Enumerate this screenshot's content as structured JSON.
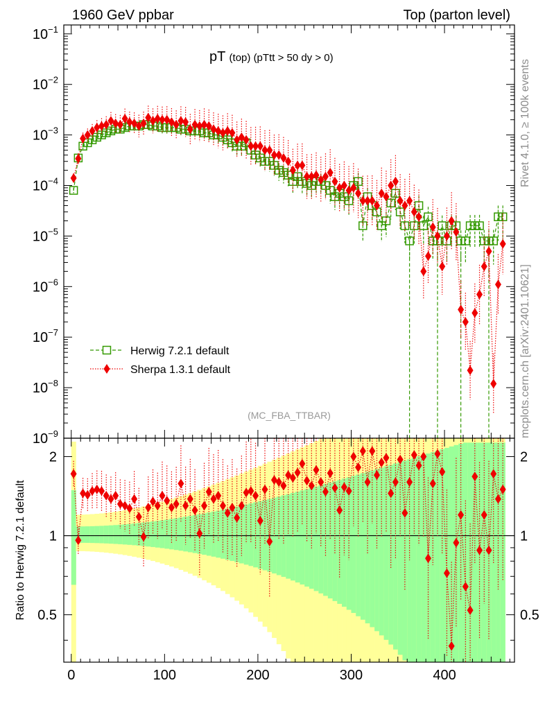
{
  "header": {
    "left": "1960 GeV ppbar",
    "right": "Top (parton level)"
  },
  "side_labels": {
    "rivet": "Rivet 4.1.0, ≥ 100k events",
    "mcplots": "mcplots.cern.ch [arXiv:2401.10621]"
  },
  "chart_data": [
    {
      "type": "scatter",
      "title_main": "pT",
      "title_sub": "(top)",
      "title_cut": "(pTtt > 50 dy > 0)",
      "analysis_tag": "(MC_FBA_TTBAR)",
      "yscale": "log",
      "xlim": [
        -8,
        475
      ],
      "ylim": [
        1e-09,
        0.15
      ],
      "ytick_labels": [
        "10−9",
        "10−8",
        "10−7",
        "10−6",
        "10−5",
        "10−4",
        "10−3",
        "10−2",
        "10−1"
      ],
      "ytick_values": [
        1e-09,
        1e-08,
        1e-07,
        1e-06,
        1e-05,
        0.0001,
        0.001,
        0.01,
        0.1
      ],
      "legend_position": "bottom-left",
      "series": [
        {
          "name": "Herwig 7.2.1 default",
          "color": "#339900",
          "marker": "open-square",
          "line": "dashed",
          "x": [
            2.5,
            7.5,
            12.5,
            17.5,
            22.5,
            27.5,
            32.5,
            37.5,
            42.5,
            47.5,
            52.5,
            57.5,
            62.5,
            67.5,
            72.5,
            77.5,
            82.5,
            87.5,
            92.5,
            97.5,
            102.5,
            107.5,
            112.5,
            117.5,
            122.5,
            127.5,
            132.5,
            137.5,
            142.5,
            147.5,
            152.5,
            157.5,
            162.5,
            167.5,
            172.5,
            177.5,
            182.5,
            187.5,
            192.5,
            197.5,
            202.5,
            207.5,
            212.5,
            217.5,
            222.5,
            227.5,
            232.5,
            237.5,
            242.5,
            247.5,
            252.5,
            257.5,
            262.5,
            267.5,
            272.5,
            277.5,
            282.5,
            287.5,
            292.5,
            297.5,
            302.5,
            307.5,
            312.5,
            317.5,
            322.5,
            327.5,
            332.5,
            337.5,
            342.5,
            347.5,
            352.5,
            357.5,
            362.5,
            367.5,
            372.5,
            377.5,
            382.5,
            387.5,
            392.5,
            397.5,
            402.5,
            407.5,
            412.5,
            417.5,
            422.5,
            427.5,
            432.5,
            437.5,
            442.5,
            447.5,
            452.5,
            457.5,
            462.5
          ],
          "y": [
            8e-05,
            0.00035,
            0.0006,
            0.0007,
            0.0008,
            0.0009,
            0.001,
            0.0011,
            0.0012,
            0.0013,
            0.0013,
            0.0014,
            0.0015,
            0.0015,
            0.0015,
            0.0016,
            0.0016,
            0.0015,
            0.0015,
            0.0014,
            0.0014,
            0.0014,
            0.0014,
            0.0013,
            0.0013,
            0.0012,
            0.0012,
            0.0012,
            0.0011,
            0.0011,
            0.001,
            0.001,
            0.0009,
            0.0008,
            0.0007,
            0.0006,
            0.0006,
            0.0007,
            0.0005,
            0.0004,
            0.00035,
            0.0003,
            0.0003,
            0.00025,
            0.0002,
            0.00018,
            0.00016,
            0.00012,
            0.00015,
            0.00012,
            0.00011,
            0.0001,
            0.00012,
            0.00012,
            0.0001,
            8e-05,
            6e-05,
            7e-05,
            6e-05,
            5e-05,
            0.0001,
            0.00012,
            1.6e-05,
            6e-05,
            4e-05,
            3e-05,
            1.6e-05,
            2e-05,
            4.5e-05,
            7e-05,
            3e-05,
            1.6e-05,
            8e-06,
            1.6e-05,
            4e-05,
            1.6e-05,
            2.4e-05,
            8e-06,
            8e-06,
            1.6e-05,
            8e-06,
            1.6e-05,
            1.6e-05,
            8e-06,
            8e-06,
            1.6e-05,
            1.6e-05,
            1.6e-05,
            8e-06,
            8e-06,
            8e-06,
            2.4e-05,
            2.4e-05
          ]
        },
        {
          "name": "Sherpa 1.3.1 default",
          "color": "#ee0000",
          "marker": "filled-diamond",
          "line": "dotted",
          "x": [
            2.5,
            7.5,
            12.5,
            17.5,
            22.5,
            27.5,
            32.5,
            37.5,
            42.5,
            47.5,
            52.5,
            57.5,
            62.5,
            67.5,
            72.5,
            77.5,
            82.5,
            87.5,
            92.5,
            97.5,
            102.5,
            107.5,
            112.5,
            117.5,
            122.5,
            127.5,
            132.5,
            137.5,
            142.5,
            147.5,
            152.5,
            157.5,
            162.5,
            167.5,
            172.5,
            177.5,
            182.5,
            187.5,
            192.5,
            197.5,
            202.5,
            207.5,
            212.5,
            217.5,
            222.5,
            227.5,
            232.5,
            237.5,
            242.5,
            247.5,
            252.5,
            257.5,
            262.5,
            267.5,
            272.5,
            277.5,
            282.5,
            287.5,
            292.5,
            297.5,
            302.5,
            307.5,
            312.5,
            317.5,
            322.5,
            327.5,
            332.5,
            337.5,
            342.5,
            347.5,
            352.5,
            357.5,
            362.5,
            367.5,
            372.5,
            377.5,
            382.5,
            387.5,
            392.5,
            397.5,
            402.5,
            407.5,
            412.5,
            417.5,
            422.5,
            427.5,
            432.5,
            437.5,
            442.5,
            447.5,
            452.5,
            457.5,
            462.5
          ],
          "y": [
            0.00014,
            0.00034,
            0.00085,
            0.001,
            0.0012,
            0.0014,
            0.0015,
            0.0016,
            0.0019,
            0.0017,
            0.0016,
            0.0021,
            0.0018,
            0.0017,
            0.0015,
            0.0017,
            0.0022,
            0.0019,
            0.0021,
            0.002,
            0.002,
            0.0018,
            0.0016,
            0.0019,
            0.0018,
            0.0013,
            0.0016,
            0.0015,
            0.0016,
            0.0015,
            0.0013,
            0.0012,
            0.0011,
            0.0012,
            0.0011,
            0.0008,
            0.0009,
            0.0008,
            0.0006,
            0.0006,
            0.0006,
            0.0005,
            0.0005,
            0.0004,
            0.0004,
            0.00035,
            0.0003,
            0.0002,
            0.00025,
            0.00025,
            0.00015,
            0.00015,
            0.00016,
            0.00013,
            0.00015,
            0.00018,
            0.00012,
            9e-05,
            0.0001,
            8e-05,
            9e-05,
            7e-05,
            5e-05,
            5e-05,
            5e-05,
            4e-05,
            7e-05,
            6e-05,
            0.0001,
            0.00012,
            5e-05,
            4e-05,
            5e-05,
            3e-05,
            2.4e-05,
            2e-06,
            4e-06,
            1.5e-05,
            1e-05,
            2.5e-06,
            1e-05,
            2e-05,
            1.2e-05,
            3.5e-07,
            2e-07,
            2.2e-08,
            3e-07,
            7e-07,
            2.5e-06,
            5e-06,
            1.2e-08,
            1.1e-06,
            7e-06
          ]
        }
      ]
    },
    {
      "type": "ratio",
      "ylabel": "Ratio to Herwig 7.2.1 default",
      "xlim": [
        -8,
        475
      ],
      "ylim": [
        0.33,
        2.35
      ],
      "ytick_labels": [
        "0.5",
        "1",
        "2"
      ],
      "ytick_values": [
        0.5,
        1,
        2
      ],
      "xtick_labels": [
        "0",
        "100",
        "200",
        "300",
        "400"
      ],
      "xtick_values": [
        0,
        100,
        200,
        300,
        400
      ],
      "reference_line": 1,
      "band_inner_color": "#99ff99",
      "band_outer_color": "#ffff99",
      "series": [
        {
          "name": "Sherpa 1.3.1 default",
          "color": "#ee0000",
          "x": [
            2.5,
            7.5,
            12.5,
            17.5,
            22.5,
            27.5,
            32.5,
            37.5,
            42.5,
            47.5,
            52.5,
            57.5,
            62.5,
            67.5,
            72.5,
            77.5,
            82.5,
            87.5,
            92.5,
            97.5,
            102.5,
            107.5,
            112.5,
            117.5,
            122.5,
            127.5,
            132.5,
            137.5,
            142.5,
            147.5,
            152.5,
            157.5,
            162.5,
            167.5,
            172.5,
            177.5,
            182.5,
            187.5,
            192.5,
            197.5,
            202.5,
            207.5,
            212.5,
            217.5,
            222.5,
            227.5,
            232.5,
            237.5,
            242.5,
            247.5,
            252.5,
            257.5,
            262.5,
            267.5,
            272.5,
            277.5,
            282.5,
            287.5,
            292.5,
            297.5,
            302.5,
            307.5,
            312.5,
            317.5,
            322.5,
            327.5,
            332.5,
            337.5,
            342.5,
            347.5,
            352.5,
            357.5,
            362.5,
            367.5,
            372.5,
            377.5,
            382.5,
            387.5,
            392.5,
            397.5,
            402.5,
            407.5,
            412.5,
            417.5,
            422.5,
            427.5,
            432.5,
            437.5,
            442.5,
            447.5,
            452.5,
            457.5,
            462.5
          ],
          "y": [
            1.72,
            0.96,
            1.45,
            1.43,
            1.48,
            1.5,
            1.48,
            1.42,
            1.38,
            1.42,
            1.32,
            1.3,
            1.27,
            1.38,
            1.18,
            0.99,
            1.28,
            1.35,
            1.3,
            1.42,
            1.36,
            1.28,
            1.32,
            1.58,
            1.3,
            1.38,
            1.25,
            1.02,
            1.3,
            1.47,
            1.38,
            1.42,
            1.3,
            1.22,
            1.28,
            1.17,
            1.3,
            1.46,
            1.48,
            1.42,
            1.14,
            1.5,
            0.95,
            1.63,
            1.6,
            1.55,
            1.7,
            1.66,
            1.74,
            1.88,
            1.62,
            1.55,
            1.78,
            1.6,
            1.47,
            1.73,
            1.52,
            1.25,
            1.53,
            1.48,
            2.0,
            1.82,
            2.1,
            1.6,
            2.1,
            1.7,
            1.9,
            1.98,
            1.45,
            1.6,
            1.95,
            1.22,
            1.6,
            2.03,
            1.85,
            2.0,
            0.82,
            1.58,
            2.05,
            1.75,
            0.72,
            0.38,
            0.94,
            1.2,
            0.64,
            0.52,
            1.68,
            0.88,
            1.2,
            0.88,
            1.72,
            1.38,
            1.5
          ]
        }
      ]
    }
  ]
}
